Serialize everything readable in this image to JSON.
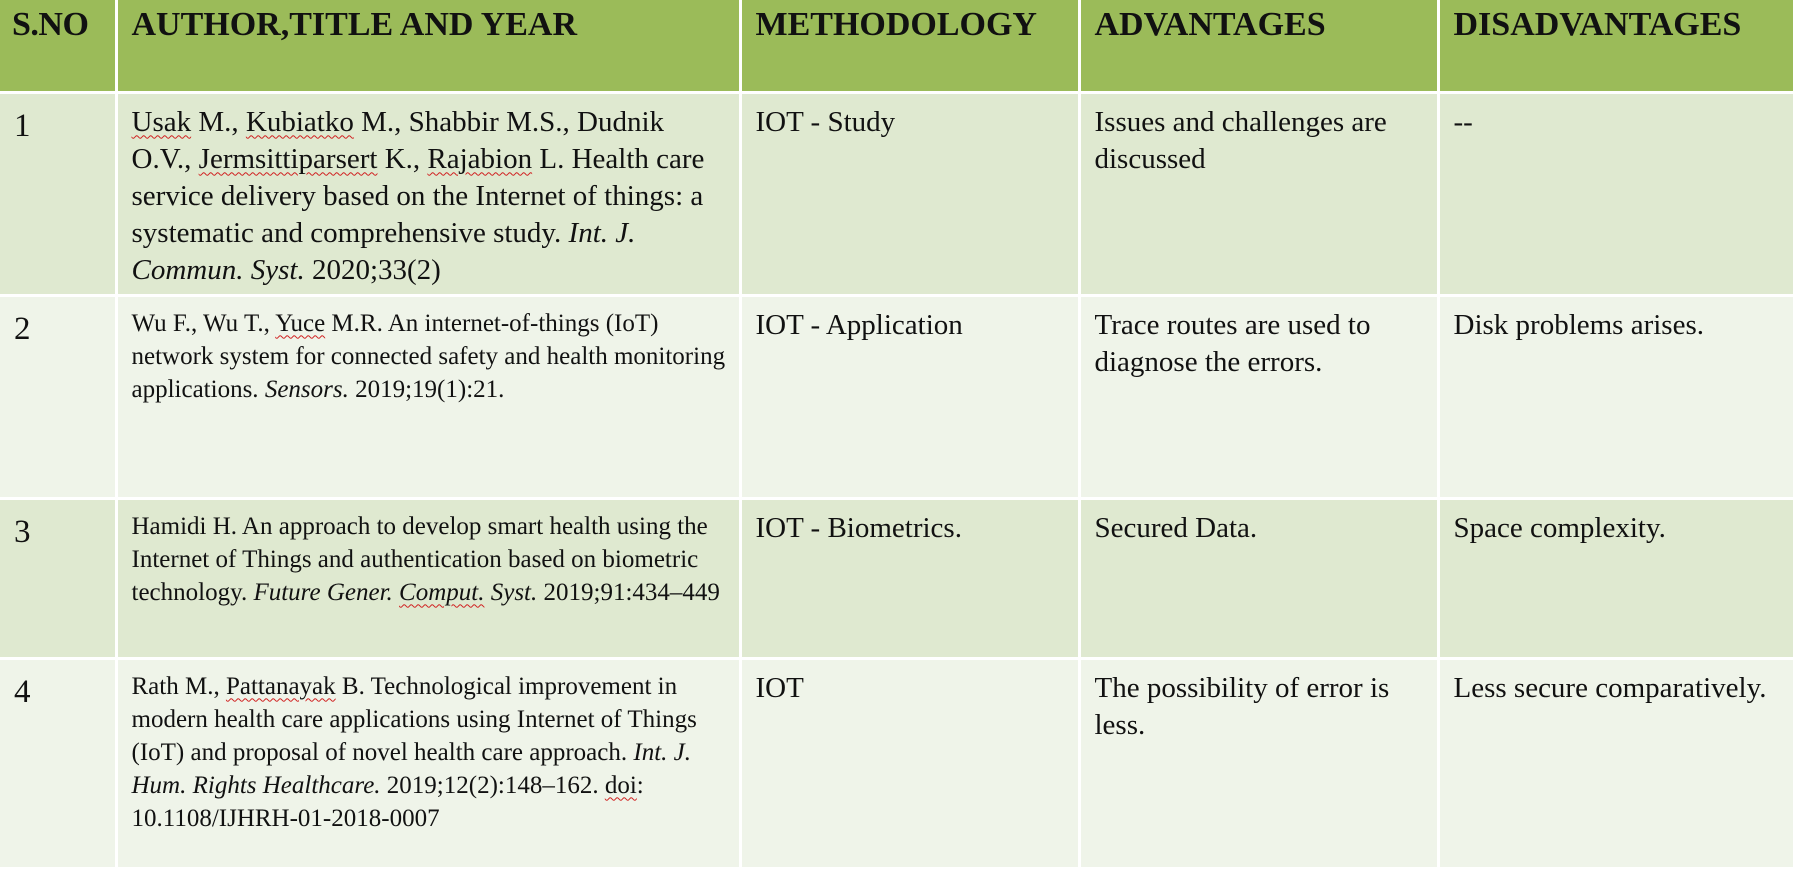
{
  "table": {
    "headers": [
      "S.NO",
      "AUTHOR,TITLE AND YEAR",
      "METHODOLOGY",
      "ADVANTAGES",
      "DISADVANTAGES"
    ],
    "rows": [
      {
        "sno": "1",
        "ref": {
          "a1": "Usak",
          "a2": " M., ",
          "a3": "Kubiatko",
          "a4": " M., Shabbir M.S., Dudnik O.V., ",
          "a5": "Jermsittiparsert",
          "a6": " K., ",
          "a7": "Rajabion",
          "a8": " L. Health care service delivery based on the Internet of things: a systematic and comprehensive study. ",
          "journal": "Int. J. Commun. Syst.",
          "tail": " 2020;33(2)"
        },
        "methodology": "IOT - Study",
        "advantages": "Issues and challenges are discussed",
        "disadvantages": "--"
      },
      {
        "sno": "2",
        "ref": {
          "a1": "Wu F., Wu T., ",
          "a2": "Yuce",
          "a3": " M.R. An internet-of-things (IoT) network system for connected safety and health monitoring applications. ",
          "journal": "Sensors.",
          "tail": " 2019;19(1):21."
        },
        "methodology": "IOT - Application",
        "advantages": "Trace routes are used to diagnose the errors.",
        "disadvantages": "Disk problems arises."
      },
      {
        "sno": "3",
        "ref": {
          "a1": "Hamidi H. An approach to develop smart health using the Internet of Things and authentication based on biometric technology. ",
          "j1": "Future Gener. ",
          "j2": "Comput.",
          "j3": " Syst.",
          "tail": " 2019;91:434–449"
        },
        "methodology": "IOT - Biometrics.",
        "advantages": "Secured Data.",
        "disadvantages": "Space complexity."
      },
      {
        "sno": "4",
        "ref": {
          "a1": "Rath M., ",
          "a2": "Pattanayak",
          "a3": " B. Technological improvement in modern health care applications using Internet of Things (IoT) and proposal of novel health care approach. ",
          "journal": "Int. J. Hum. Rights Healthcare.",
          "t1": " 2019;12(2):148–162. ",
          "t2": "doi",
          "t3": ": 10.1108/IJHRH-01-2018-0007"
        },
        "methodology": "IOT",
        "advantages": "The possibility of error is less.",
        "disadvantages": "Less secure comparatively."
      }
    ]
  },
  "colors": {
    "header": "#9bbb59",
    "row_odd": "#dfe9d0",
    "row_even": "#eff4e9",
    "spellcheck": "#d02020"
  }
}
